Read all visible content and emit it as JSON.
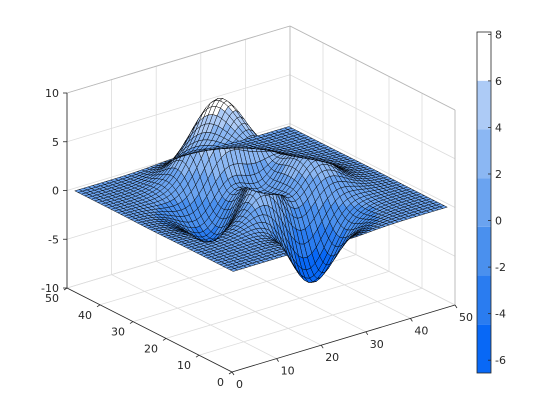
{
  "chart_data": {
    "type": "surface",
    "title": "",
    "xlabel": "",
    "ylabel": "",
    "zlabel": "",
    "x_range": [
      0,
      49
    ],
    "y_range": [
      0,
      49
    ],
    "z_range": [
      -10,
      10
    ],
    "x_ticks": [
      "0",
      "10",
      "20",
      "30",
      "40",
      "50"
    ],
    "y_ticks": [
      "0",
      "10",
      "20",
      "30",
      "40",
      "50"
    ],
    "z_ticks": [
      "-10",
      "-5",
      "0",
      "5",
      "10"
    ],
    "grid": true,
    "surface": {
      "function": "peaks",
      "grid_size": [
        49,
        49
      ],
      "z_min": -6.55,
      "z_max": 8.1,
      "features": [
        {
          "kind": "peak",
          "x": 24,
          "y": 36,
          "z": 8.1
        },
        {
          "kind": "peak",
          "x": 15,
          "y": 24,
          "z": 3.8
        },
        {
          "kind": "peak",
          "x": 33,
          "y": 26,
          "z": 3.6
        },
        {
          "kind": "trough",
          "x": 21,
          "y": 13,
          "z": -6.5
        },
        {
          "kind": "trough",
          "x": 38,
          "y": 15,
          "z": -3.0
        }
      ]
    },
    "colorbar": {
      "location": "right",
      "range": [
        -6.55,
        8.1
      ],
      "ticks": [
        "-6",
        "-4",
        "-2",
        "0",
        "2",
        "4",
        "6",
        "8"
      ],
      "colors": [
        "#0868f6",
        "#2a7cf0",
        "#4a90ee",
        "#6aa3f0",
        "#8bb7f3",
        "#adcbf6",
        "#ffffff"
      ]
    }
  }
}
